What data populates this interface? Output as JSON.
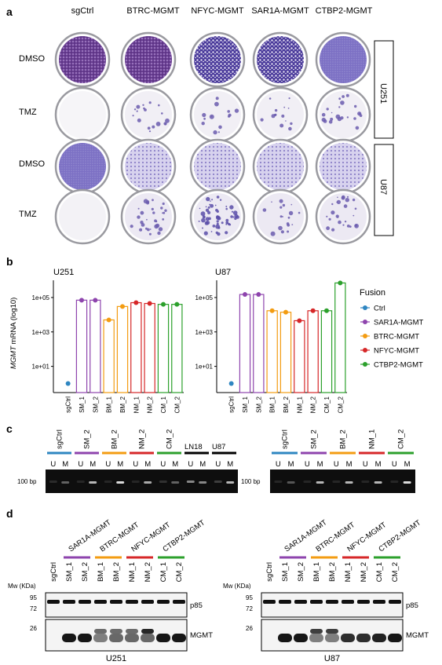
{
  "panels": {
    "a": {
      "label": "a",
      "columns": [
        "sgCtrl",
        "BTRC-MGMT",
        "NFYC-MGMT",
        "SAR1A-MGMT",
        "CTBP2-MGMT"
      ],
      "rows": [
        "DMSO",
        "TMZ",
        "DMSO",
        "TMZ"
      ],
      "groups": [
        "U251",
        "U87"
      ]
    },
    "b": {
      "label": "b",
      "ylabel_italic": "MGMT",
      "ylabel_rest": " mRNA (log10)",
      "yticks": [
        "1e+01",
        "1e+03",
        "1e+05"
      ],
      "legend": {
        "title": "Fusion",
        "items": [
          {
            "label": "Ctrl",
            "color": "#2e86c1"
          },
          {
            "label": "SAR1A-MGMT",
            "color": "#8e44ad"
          },
          {
            "label": "BTRC-MGMT",
            "color": "#f39c12"
          },
          {
            "label": "NFYC-MGMT",
            "color": "#d62728"
          },
          {
            "label": "CTBP2-MGMT",
            "color": "#2ca02c"
          }
        ]
      }
    },
    "c": {
      "label": "c",
      "marker": "100 bp",
      "left_groups": [
        {
          "name": "sgCtrl",
          "color": "#2e86c1"
        },
        {
          "name": "SM_2",
          "color": "#8e44ad"
        },
        {
          "name": "BM_2",
          "color": "#f39c12"
        },
        {
          "name": "NM_2",
          "color": "#d62728"
        },
        {
          "name": "CM_2",
          "color": "#2ca02c"
        },
        {
          "name": "LN18",
          "color": "#000000"
        },
        {
          "name": "U87",
          "color": "#000000"
        }
      ],
      "right_groups": [
        {
          "name": "sgCtrl",
          "color": "#2e86c1"
        },
        {
          "name": "SM_2",
          "color": "#8e44ad"
        },
        {
          "name": "BM_2",
          "color": "#f39c12"
        },
        {
          "name": "NM_1",
          "color": "#d62728"
        },
        {
          "name": "CM_2",
          "color": "#2ca02c"
        }
      ],
      "lane_u": "U",
      "lane_m": "M"
    },
    "d": {
      "label": "d",
      "mw_label": "Mw (KDa)",
      "mw_top": [
        "95",
        "72"
      ],
      "mw_bottom": "26",
      "band_p85": "p85",
      "band_mgmt": "MGMT",
      "fusions": [
        {
          "name": "SAR1A-MGMT",
          "color": "#8e44ad"
        },
        {
          "name": "BTRC-MGMT",
          "color": "#f39c12"
        },
        {
          "name": "NFYC-MGMT",
          "color": "#d62728"
        },
        {
          "name": "CTBP2-MGMT",
          "color": "#2ca02c"
        }
      ],
      "lanes": [
        "sgCtrl",
        "SM_1",
        "SM_2",
        "BM_1",
        "BM_2",
        "NM_1",
        "NM_2",
        "CM_1",
        "CM_2"
      ],
      "cell_lines": [
        "U251",
        "U87"
      ]
    }
  },
  "chart_data": [
    {
      "type": "bar",
      "title": "U251",
      "categories": [
        "sgCtrl",
        "SM_1",
        "SM_2",
        "BM_1",
        "BM_2",
        "NM_1",
        "NM_2",
        "CM_1",
        "CM_2"
      ],
      "fusion": [
        "Ctrl",
        "SAR1A-MGMT",
        "SAR1A-MGMT",
        "BTRC-MGMT",
        "BTRC-MGMT",
        "NFYC-MGMT",
        "NFYC-MGMT",
        "CTBP2-MGMT",
        "CTBP2-MGMT"
      ],
      "values": [
        1,
        70000,
        70000,
        5000,
        30000,
        50000,
        45000,
        40000,
        40000
      ],
      "yscale": "log",
      "ylim": [
        0.3,
        1000000
      ]
    },
    {
      "type": "bar",
      "title": "U87",
      "categories": [
        "sgCtrl",
        "SM_1",
        "SM_2",
        "BM_1",
        "BM_2",
        "NM_1",
        "NM_2",
        "CM_1",
        "CM_2"
      ],
      "fusion": [
        "Ctrl",
        "SAR1A-MGMT",
        "SAR1A-MGMT",
        "BTRC-MGMT",
        "BTRC-MGMT",
        "NFYC-MGMT",
        "NFYC-MGMT",
        "CTBP2-MGMT",
        "CTBP2-MGMT"
      ],
      "values": [
        1,
        150000,
        150000,
        17000,
        14000,
        4500,
        17000,
        17000,
        700000
      ],
      "yscale": "log",
      "ylim": [
        0.3,
        1000000
      ]
    }
  ]
}
